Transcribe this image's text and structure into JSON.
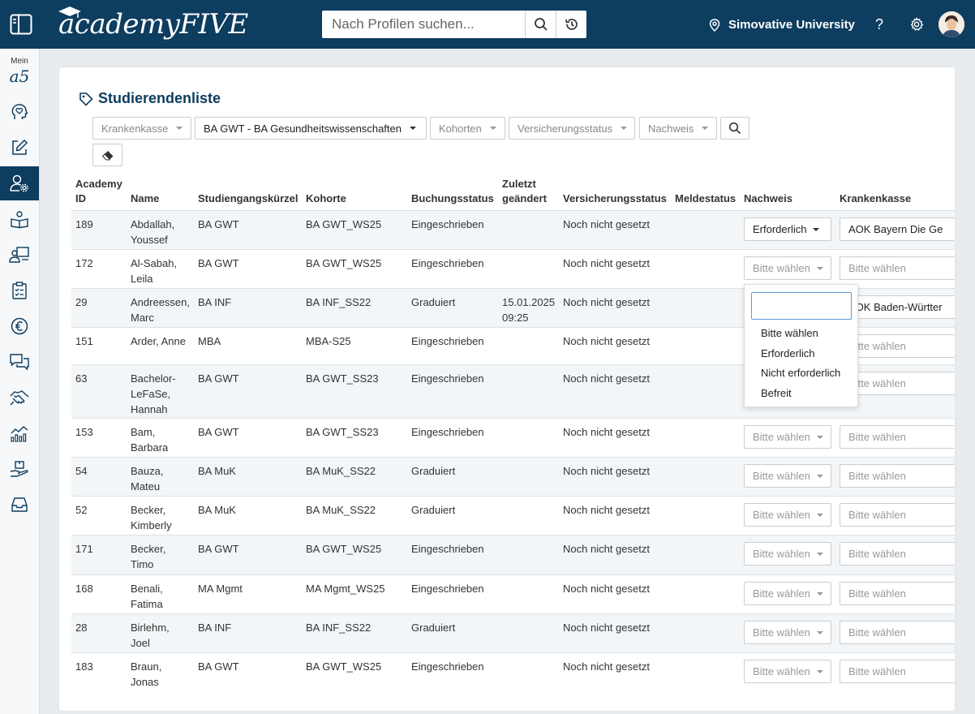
{
  "header": {
    "logo_text": "academyFIVE",
    "search_placeholder": "Nach Profilen suchen...",
    "university": "Simovative University"
  },
  "sidebar": {
    "mein_label": "Mein",
    "a5_label": "a5",
    "items": [
      "heart-head-icon",
      "edit-icon",
      "user-settings-icon",
      "book-user-icon",
      "teacher-icon",
      "clipboard-icon",
      "euro-icon",
      "chat-icon",
      "handshake-icon",
      "stats-icon",
      "hand-box-icon",
      "inbox-icon"
    ]
  },
  "page": {
    "title": "Studierendenliste"
  },
  "filters": {
    "krankenkasse": "Krankenkasse",
    "studiengang": "BA GWT - BA Gesundheitswissenschaften",
    "kohorten": "Kohorten",
    "versicherungsstatus": "Versicherungsstatus",
    "nachweis": "Nachweis"
  },
  "table": {
    "headers": {
      "academy_id_1": "Academy",
      "academy_id_2": "ID",
      "name": "Name",
      "studiengang": "Studiengangskürzel",
      "kohorte": "Kohorte",
      "buchung": "Buchungsstatus",
      "zuletzt_1": "Zuletzt",
      "zuletzt_2": "geändert",
      "versicherung": "Versicherungsstatus",
      "melde": "Meldestatus",
      "nachweis": "Nachweis",
      "krankenkasse": "Krankenkasse"
    },
    "rows": [
      {
        "id": "189",
        "name1": "Abdallah,",
        "name2": "Youssef",
        "name3": "",
        "sg": "BA GWT",
        "kohorte": "BA GWT_WS25",
        "buchung": "Eingeschrieben",
        "date": "",
        "time": "",
        "vers": "Noch nicht gesetzt",
        "nachweis": "Erforderlich",
        "kk": "AOK Bayern Die Ge"
      },
      {
        "id": "172",
        "name1": "Al-Sabah,",
        "name2": "Leila",
        "name3": "",
        "sg": "BA GWT",
        "kohorte": "BA GWT_WS25",
        "buchung": "Eingeschrieben",
        "date": "",
        "time": "",
        "vers": "Noch nicht gesetzt",
        "nachweis": "Bitte wählen",
        "kk": "Bitte wählen"
      },
      {
        "id": "29",
        "name1": "Andreessen,",
        "name2": "Marc",
        "name3": "",
        "sg": "BA INF",
        "kohorte": "BA INF_SS22",
        "buchung": "Graduiert",
        "date": "15.01.2025",
        "time": "09:25",
        "vers": "Noch nicht gesetzt",
        "nachweis": "",
        "kk": "AOK Baden-Württer"
      },
      {
        "id": "151",
        "name1": "Arder, Anne",
        "name2": "",
        "name3": "",
        "sg": "MBA",
        "kohorte": "MBA-S25",
        "buchung": "Eingeschrieben",
        "date": "",
        "time": "",
        "vers": "Noch nicht gesetzt",
        "nachweis": "",
        "kk": "Bitte wählen"
      },
      {
        "id": "63",
        "name1": "Bachelor-",
        "name2": "LeFaSe,",
        "name3": "Hannah",
        "sg": "BA GWT",
        "kohorte": "BA GWT_SS23",
        "buchung": "Eingeschrieben",
        "date": "",
        "time": "",
        "vers": "Noch nicht gesetzt",
        "nachweis": "",
        "kk": "Bitte wählen"
      },
      {
        "id": "153",
        "name1": "Bam,",
        "name2": "Barbara",
        "name3": "",
        "sg": "BA GWT",
        "kohorte": "BA GWT_SS23",
        "buchung": "Eingeschrieben",
        "date": "",
        "time": "",
        "vers": "Noch nicht gesetzt",
        "nachweis": "Bitte wählen",
        "kk": "Bitte wählen"
      },
      {
        "id": "54",
        "name1": "Bauza,",
        "name2": "Mateu",
        "name3": "",
        "sg": "BA MuK",
        "kohorte": "BA MuK_SS22",
        "buchung": "Graduiert",
        "date": "",
        "time": "",
        "vers": "Noch nicht gesetzt",
        "nachweis": "Bitte wählen",
        "kk": "Bitte wählen"
      },
      {
        "id": "52",
        "name1": "Becker,",
        "name2": "Kimberly",
        "name3": "",
        "sg": "BA MuK",
        "kohorte": "BA MuK_SS22",
        "buchung": "Graduiert",
        "date": "",
        "time": "",
        "vers": "Noch nicht gesetzt",
        "nachweis": "Bitte wählen",
        "kk": "Bitte wählen"
      },
      {
        "id": "171",
        "name1": "Becker,",
        "name2": "Timo",
        "name3": "",
        "sg": "BA GWT",
        "kohorte": "BA GWT_WS25",
        "buchung": "Eingeschrieben",
        "date": "",
        "time": "",
        "vers": "Noch nicht gesetzt",
        "nachweis": "Bitte wählen",
        "kk": "Bitte wählen"
      },
      {
        "id": "168",
        "name1": "Benali,",
        "name2": "Fatima",
        "name3": "",
        "sg": "MA Mgmt",
        "kohorte": "MA Mgmt_WS25",
        "buchung": "Eingeschrieben",
        "date": "",
        "time": "",
        "vers": "Noch nicht gesetzt",
        "nachweis": "Bitte wählen",
        "kk": "Bitte wählen"
      },
      {
        "id": "28",
        "name1": "Birlehm,",
        "name2": "Joel",
        "name3": "",
        "sg": "BA INF",
        "kohorte": "BA INF_SS22",
        "buchung": "Graduiert",
        "date": "",
        "time": "",
        "vers": "Noch nicht gesetzt",
        "nachweis": "Bitte wählen",
        "kk": "Bitte wählen"
      },
      {
        "id": "183",
        "name1": "Braun,",
        "name2": "Jonas",
        "name3": "",
        "sg": "BA GWT",
        "kohorte": "BA GWT_WS25",
        "buchung": "Eingeschrieben",
        "date": "",
        "time": "",
        "vers": "Noch nicht gesetzt",
        "nachweis": "Bitte wählen",
        "kk": "Bitte wählen"
      }
    ]
  },
  "nachweis_popup": {
    "search_value": "",
    "options": [
      "Bitte wählen",
      "Erforderlich",
      "Nicht erforderlich",
      "Befreit"
    ]
  }
}
